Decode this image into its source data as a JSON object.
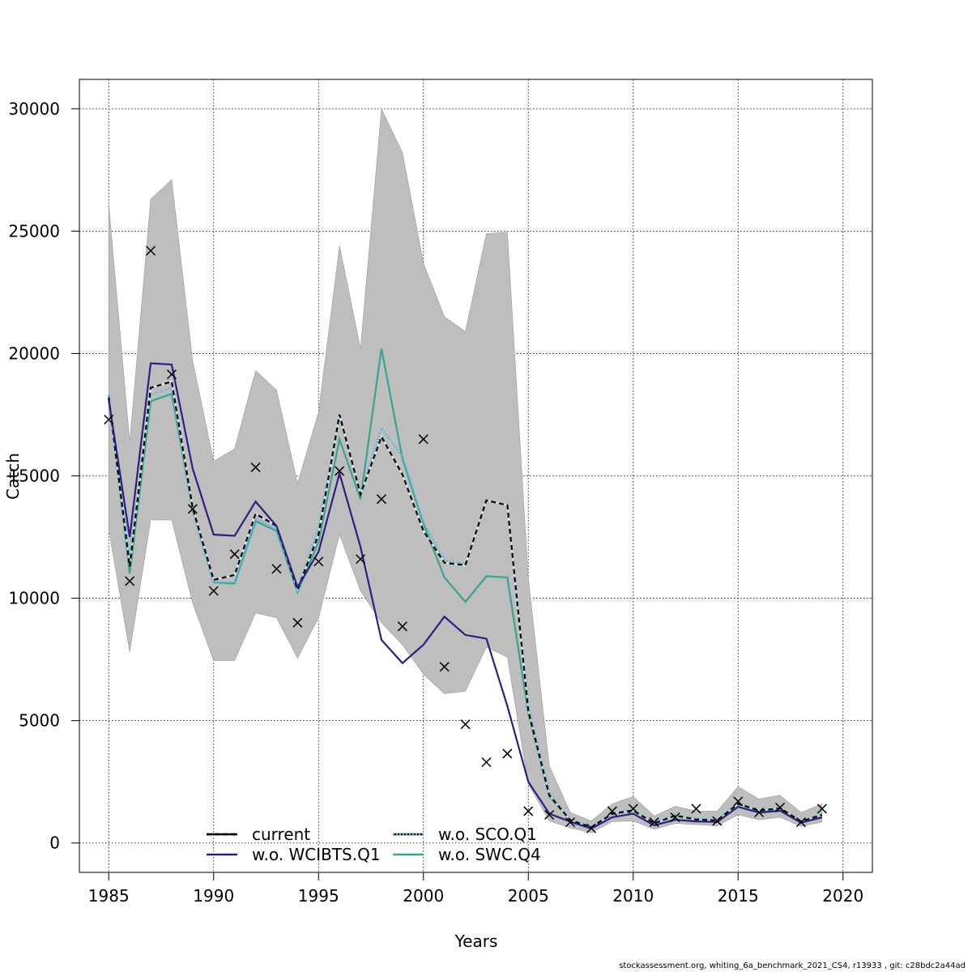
{
  "chart_data": {
    "type": "line",
    "xlabel": "Years",
    "ylabel": "Catch",
    "xlim": [
      1983.6,
      2021.4
    ],
    "ylim": [
      -1200,
      31200
    ],
    "xticks": [
      1985,
      1990,
      1995,
      2000,
      2005,
      2010,
      2015,
      2020
    ],
    "yticks": [
      0,
      5000,
      10000,
      15000,
      20000,
      25000,
      30000
    ],
    "grid": true,
    "legend_position": "bottom",
    "years": [
      1985,
      1986,
      1987,
      1988,
      1989,
      1990,
      1991,
      1992,
      1993,
      1994,
      1995,
      1996,
      1997,
      1998,
      1999,
      2000,
      2001,
      2002,
      2003,
      2004,
      2005,
      2006,
      2007,
      2008,
      2009,
      2010,
      2011,
      2012,
      2013,
      2014,
      2015,
      2016,
      2017,
      2018,
      2019
    ],
    "band": {
      "fill": "#bebebe",
      "upper": [
        26100,
        16400,
        26300,
        27100,
        19700,
        15600,
        16100,
        19300,
        18500,
        14700,
        17600,
        24400,
        20200,
        30000,
        28200,
        23700,
        21500,
        20900,
        24900,
        24950,
        10800,
        3150,
        1250,
        900,
        1600,
        1900,
        1100,
        1500,
        1300,
        1300,
        2300,
        1800,
        1950,
        1250,
        1600
      ],
      "lower": [
        12800,
        7800,
        13200,
        13200,
        9800,
        7450,
        7450,
        9400,
        9200,
        7550,
        9200,
        12600,
        10300,
        9000,
        8100,
        6900,
        6100,
        6200,
        8000,
        7600,
        2400,
        900,
        620,
        420,
        870,
        900,
        560,
        800,
        750,
        700,
        1150,
        950,
        1050,
        680,
        850
      ]
    },
    "series": [
      {
        "name": "current",
        "color": "#000000",
        "dash": "6,4",
        "values": [
          18200,
          11300,
          18600,
          18850,
          13700,
          10750,
          10950,
          13450,
          12950,
          10350,
          12600,
          17500,
          14250,
          16600,
          15050,
          12750,
          11450,
          11350,
          14000,
          13800,
          5400,
          1950,
          930,
          640,
          1200,
          1330,
          800,
          1120,
          960,
          920,
          1600,
          1320,
          1420,
          880,
          1150
        ]
      },
      {
        "name": "w.o. WCIBTS.Q1",
        "color": "#2d1f80",
        "dash": "",
        "values": [
          18100,
          12500,
          19600,
          19550,
          15300,
          12600,
          12550,
          13950,
          12950,
          10450,
          11900,
          15100,
          12100,
          8300,
          7350,
          8100,
          9250,
          8500,
          8350,
          5600,
          2500,
          1200,
          870,
          590,
          1050,
          1200,
          720,
          950,
          880,
          860,
          1480,
          1240,
          1320,
          830,
          1050
        ]
      },
      {
        "name": "w.o. SCO.Q1",
        "color": "#4fb8e8",
        "dash": "2,2",
        "values": [
          18250,
          11700,
          18300,
          18600,
          13600,
          10650,
          10650,
          13250,
          12850,
          10350,
          12900,
          17450,
          14300,
          16950,
          15800,
          13100,
          11550,
          11400,
          14000,
          13800,
          5600,
          2050,
          960,
          660,
          1220,
          1360,
          830,
          1150,
          990,
          950,
          1640,
          1340,
          1440,
          900,
          1180
        ]
      },
      {
        "name": "w.o. SWC.Q4",
        "color": "#3aa390",
        "dash": "",
        "values": [
          18300,
          11000,
          18050,
          18350,
          13600,
          10650,
          10600,
          13150,
          12750,
          10250,
          12300,
          16500,
          14050,
          20200,
          15700,
          13050,
          10850,
          9850,
          10900,
          10850,
          5300,
          1900,
          950,
          650,
          1180,
          1330,
          810,
          1120,
          960,
          930,
          1620,
          1300,
          1400,
          870,
          1140
        ]
      }
    ],
    "observed": {
      "marker": "x",
      "years": [
        1985,
        1986,
        1987,
        1988,
        1989,
        1990,
        1991,
        1992,
        1993,
        1994,
        1995,
        1996,
        1997,
        1998,
        1999,
        2000,
        2001,
        2002,
        2003,
        2004,
        2005,
        2006,
        2007,
        2008,
        2009,
        2010,
        2011,
        2012,
        2013,
        2014,
        2015,
        2016,
        2017,
        2018,
        2019
      ],
      "values": [
        17300,
        10700,
        24200,
        19150,
        13650,
        10300,
        11800,
        15350,
        11200,
        9000,
        11500,
        15200,
        11600,
        14050,
        8850,
        16500,
        7200,
        4850,
        3300,
        3650,
        1300,
        1150,
        850,
        600,
        1300,
        1400,
        850,
        1050,
        1400,
        900,
        1700,
        1250,
        1450,
        850,
        1400
      ]
    }
  },
  "footer": "stockassessment.org, whiting_6a_benchmark_2021_CS4, r13933 , git: c28bdc2a44ad"
}
